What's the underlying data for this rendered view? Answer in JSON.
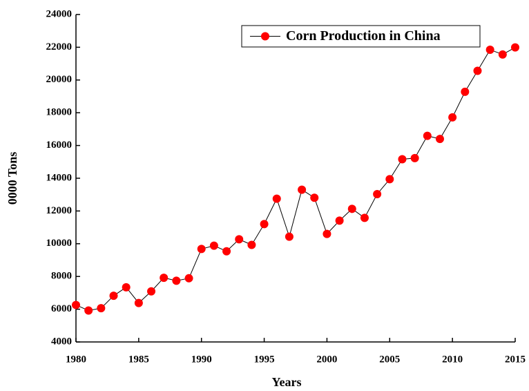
{
  "chart_data": {
    "type": "line",
    "xlabel": "Years",
    "ylabel": "0000 Tons",
    "x": [
      1980,
      1981,
      1982,
      1983,
      1984,
      1985,
      1986,
      1987,
      1988,
      1989,
      1990,
      1991,
      1992,
      1993,
      1994,
      1995,
      1996,
      1997,
      1998,
      1999,
      2000,
      2001,
      2002,
      2003,
      2004,
      2005,
      2006,
      2007,
      2008,
      2009,
      2010,
      2011,
      2012,
      2013,
      2014,
      2015
    ],
    "series": [
      {
        "name": "Corn Production in China",
        "color": "#ff0000",
        "values": [
          6260,
          5920,
          6060,
          6820,
          7340,
          6380,
          7090,
          7920,
          7740,
          7890,
          9680,
          9880,
          9540,
          10270,
          9930,
          11200,
          12750,
          10430,
          13300,
          12810,
          10600,
          11410,
          12130,
          11580,
          13030,
          13940,
          15160,
          15230,
          16590,
          16400,
          17720,
          19280,
          20560,
          21850,
          21560,
          21990
        ]
      }
    ],
    "xlim": [
      1980,
      2015
    ],
    "xticks": [
      1980,
      1985,
      1990,
      1995,
      2000,
      2005,
      2010,
      2015
    ],
    "ylim": [
      4000,
      24000
    ],
    "yticks": [
      4000,
      6000,
      8000,
      10000,
      12000,
      14000,
      16000,
      18000,
      20000,
      22000,
      24000
    ],
    "legend": "upper right"
  }
}
